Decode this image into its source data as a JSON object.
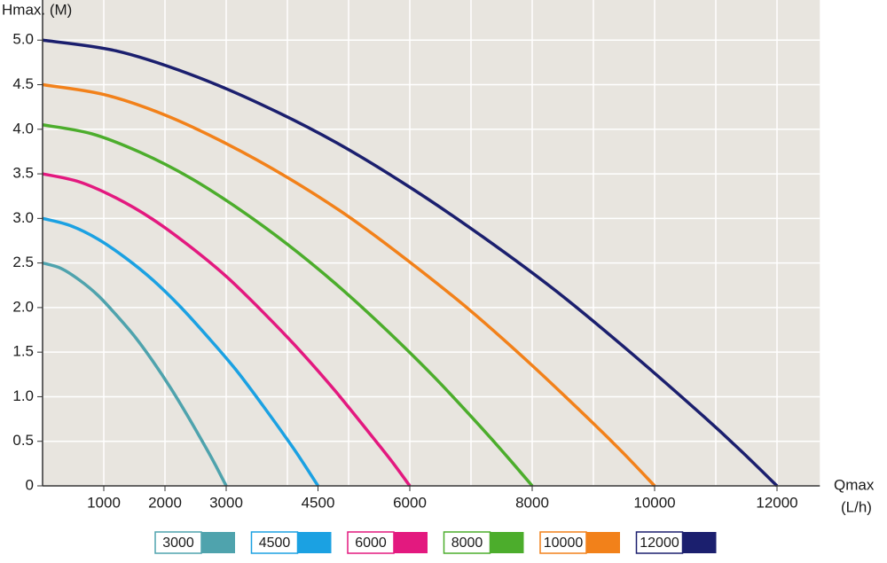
{
  "chart_data": {
    "type": "line",
    "y_label": "Hmax. (M)",
    "x_label": "Qmax",
    "x_unit": "(L/h)",
    "xlim": [
      0,
      12700
    ],
    "ylim": [
      0,
      5.45
    ],
    "xticks": [
      1000,
      2000,
      3000,
      4500,
      6000,
      8000,
      10000,
      12000
    ],
    "xgrid": [
      1000,
      2000,
      3000,
      4000,
      5000,
      6000,
      7000,
      8000,
      9000,
      10000,
      11000,
      12000
    ],
    "yticks": [
      0,
      0.5,
      {
        "value": 1,
        "label": "1.0"
      },
      1.5,
      {
        "value": 2,
        "label": "2.0"
      },
      2.5,
      {
        "value": 3,
        "label": "3.0"
      },
      3.5,
      {
        "value": 4,
        "label": "4.0"
      },
      4.5,
      {
        "value": 5,
        "label": "5.0"
      }
    ],
    "grid": true,
    "background": "#e8e5df",
    "legend": "bottom",
    "series": [
      {
        "name": "3000",
        "color": "#4fa3ad",
        "x": [
          0,
          300,
          600,
          900,
          1200,
          1500,
          1800,
          2100,
          2400,
          2700,
          2850,
          3000
        ],
        "values": [
          2.5,
          2.44,
          2.31,
          2.14,
          1.92,
          1.68,
          1.4,
          1.09,
          0.75,
          0.39,
          0.2,
          0
        ]
      },
      {
        "name": "4500",
        "color": "#1ba1e2",
        "x": [
          0,
          450,
          900,
          1350,
          1800,
          2250,
          2700,
          3150,
          3600,
          4050,
          4275,
          4500
        ],
        "values": [
          3.0,
          2.92,
          2.77,
          2.56,
          2.31,
          2.01,
          1.67,
          1.31,
          0.9,
          0.47,
          0.24,
          0
        ]
      },
      {
        "name": "6000",
        "color": "#e3197f",
        "x": [
          0,
          600,
          1200,
          1800,
          2400,
          3000,
          3600,
          4200,
          4800,
          5400,
          5700,
          6000
        ],
        "values": [
          3.5,
          3.41,
          3.23,
          2.99,
          2.69,
          2.35,
          1.95,
          1.52,
          1.05,
          0.54,
          0.28,
          0
        ]
      },
      {
        "name": "8000",
        "color": "#4cad2c",
        "x": [
          0,
          800,
          1600,
          2400,
          3200,
          4000,
          4800,
          5600,
          6400,
          7200,
          7600,
          8000
        ],
        "values": [
          4.05,
          3.95,
          3.74,
          3.46,
          3.11,
          2.71,
          2.26,
          1.76,
          1.22,
          0.63,
          0.32,
          0
        ]
      },
      {
        "name": "10000",
        "color": "#f2811a",
        "x": [
          0,
          1000,
          2000,
          3000,
          4000,
          5000,
          6000,
          7000,
          8000,
          9000,
          9500,
          10000
        ],
        "values": [
          4.5,
          4.39,
          4.16,
          3.84,
          3.46,
          3.02,
          2.51,
          1.96,
          1.35,
          0.7,
          0.36,
          0
        ]
      },
      {
        "name": "12000",
        "color": "#1b1f6e",
        "x": [
          0,
          1200,
          2400,
          3600,
          4800,
          6000,
          7200,
          8400,
          9600,
          10800,
          11400,
          12000
        ],
        "values": [
          5.0,
          4.88,
          4.62,
          4.27,
          3.85,
          3.35,
          2.79,
          2.18,
          1.5,
          0.78,
          0.4,
          0
        ]
      }
    ]
  }
}
